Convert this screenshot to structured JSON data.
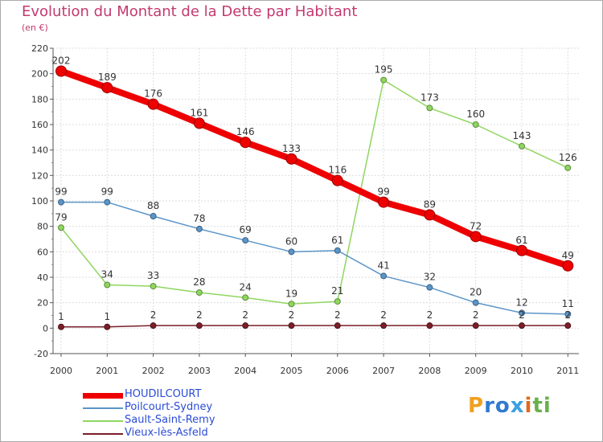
{
  "title": "Evolution du Montant de la Dette par Habitant",
  "subtitle": "(en €)",
  "brand": {
    "letters": [
      "P",
      "r",
      "o",
      "x",
      "i",
      "t",
      "i"
    ],
    "colors": [
      "#f0a020",
      "#2f7ad0",
      "#2f7ad0",
      "#3aa0e0",
      "#e06a20",
      "#6ab04c",
      "#6ab04c"
    ]
  },
  "chart_data": {
    "type": "line",
    "title": "Evolution du Montant de la Dette par Habitant",
    "subtitle": "(en €)",
    "categories": [
      "2000",
      "2001",
      "2002",
      "2003",
      "2004",
      "2005",
      "2006",
      "2007",
      "2008",
      "2009",
      "2010",
      "2011"
    ],
    "ylim": [
      -20,
      220
    ],
    "yticks": [
      "-20",
      "0",
      "20",
      "40",
      "60",
      "80",
      "100",
      "120",
      "140",
      "160",
      "180",
      "200",
      "220"
    ],
    "grid": true,
    "legend_position": "bottom-left",
    "series": [
      {
        "name": "Vieux-lès-Asfeld",
        "color": "#7a1f2a",
        "labels": [
          "1",
          "1",
          "2",
          "2",
          "2",
          "2",
          "2",
          "2",
          "2",
          "2",
          "2",
          "2"
        ],
        "values": [
          1,
          1,
          2,
          2,
          2,
          2,
          2,
          2,
          2,
          2,
          2,
          2
        ]
      },
      {
        "name": "Sault-Saint-Remy",
        "color": "#8fd65f",
        "labels": [
          "79",
          "34",
          "33",
          "28",
          "24",
          "19",
          "21",
          "195",
          "173",
          "160",
          "143",
          "126"
        ],
        "values": [
          79,
          34,
          33,
          28,
          24,
          19,
          21,
          195,
          173,
          160,
          143,
          126
        ]
      },
      {
        "name": "Poilcourt-Sydney",
        "color": "#5b95c8",
        "labels": [
          "99",
          "99",
          "88",
          "78",
          "69",
          "60",
          "61",
          "41",
          "32",
          "20",
          "12",
          "11"
        ],
        "values": [
          99,
          99,
          88,
          78,
          69,
          60,
          61,
          41,
          32,
          20,
          12,
          11
        ]
      },
      {
        "name": "HOUDILCOURT",
        "color": "#ee0000",
        "labels": [
          "202",
          "189",
          "176",
          "161",
          "146",
          "133",
          "116",
          "99",
          "89",
          "72",
          "61",
          "49"
        ],
        "values": [
          202,
          189,
          176,
          161,
          146,
          133,
          116,
          99,
          89,
          72,
          61,
          49
        ]
      }
    ],
    "legend": [
      "HOUDILCOURT",
      "Poilcourt-Sydney",
      "Sault-Saint-Remy",
      "Vieux-lès-Asfeld"
    ]
  }
}
